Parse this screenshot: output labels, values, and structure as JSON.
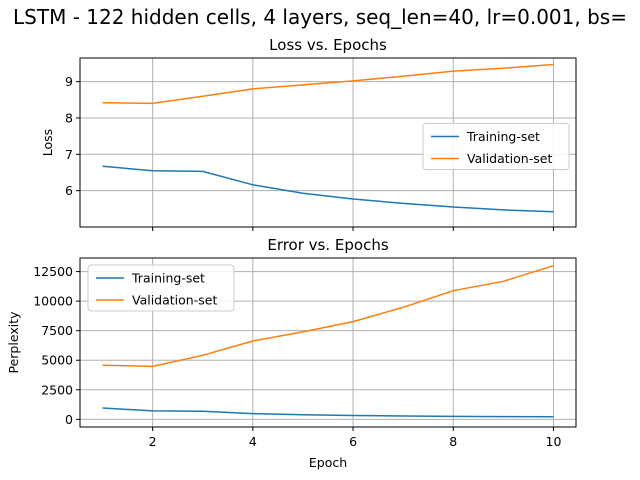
{
  "figure_title": "LSTM - 122 hidden cells, 4 layers, seq_len=40, lr=0.001, bs=",
  "chart_data": [
    {
      "type": "line",
      "title": "Loss vs. Epochs",
      "xlabel": "",
      "ylabel": "Loss",
      "x": [
        1,
        2,
        3,
        4,
        5,
        6,
        7,
        8,
        9,
        10
      ],
      "xlim": [
        0.55,
        10.45
      ],
      "ylim": [
        5.0,
        9.65
      ],
      "xticks": [
        2,
        4,
        6,
        8,
        10
      ],
      "yticks": [
        6,
        7,
        8,
        9
      ],
      "show_xtick_labels": false,
      "grid": true,
      "legend": "center-right",
      "series": [
        {
          "name": "Training-set",
          "color": "#1f77b4",
          "values": [
            6.67,
            6.55,
            6.53,
            6.16,
            5.93,
            5.77,
            5.65,
            5.55,
            5.47,
            5.42
          ]
        },
        {
          "name": "Validation-set",
          "color": "#ff7f0e",
          "values": [
            8.42,
            8.4,
            8.6,
            8.8,
            8.91,
            9.02,
            9.15,
            9.29,
            9.37,
            9.47
          ]
        }
      ]
    },
    {
      "type": "line",
      "title": "Error vs. Epochs",
      "xlabel": "Epoch",
      "ylabel": "Perplexity",
      "x": [
        1,
        2,
        3,
        4,
        5,
        6,
        7,
        8,
        9,
        10
      ],
      "xlim": [
        0.55,
        10.45
      ],
      "ylim": [
        -650,
        13650
      ],
      "xticks": [
        2,
        4,
        6,
        8,
        10
      ],
      "yticks": [
        0,
        2500,
        5000,
        7500,
        10000,
        12500
      ],
      "show_xtick_labels": true,
      "grid": true,
      "legend": "upper-left",
      "series": [
        {
          "name": "Training-set",
          "color": "#1f77b4",
          "values": [
            960,
            710,
            690,
            480,
            380,
            320,
            280,
            250,
            230,
            220
          ]
        },
        {
          "name": "Validation-set",
          "color": "#ff7f0e",
          "values": [
            4580,
            4480,
            5420,
            6630,
            7400,
            8270,
            9480,
            10880,
            11680,
            13000
          ]
        }
      ]
    }
  ]
}
